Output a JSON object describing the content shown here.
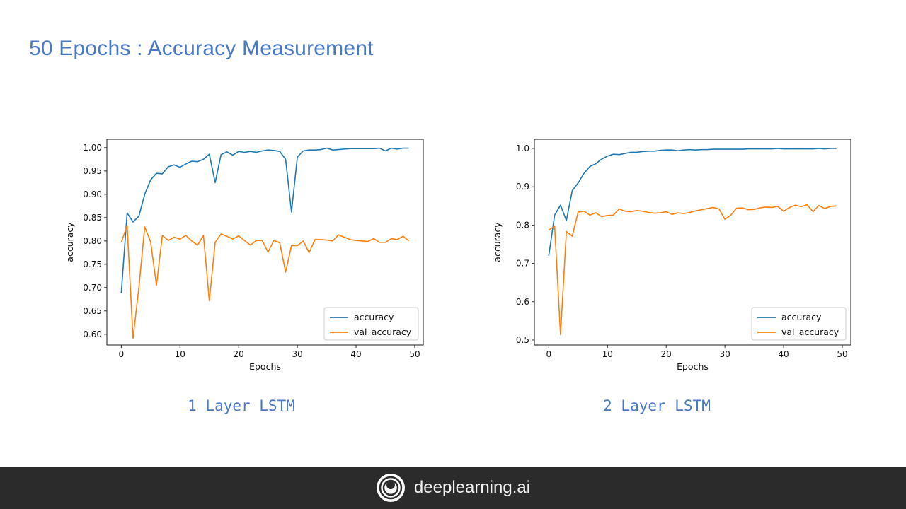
{
  "slide": {
    "title": "50 Epochs : Accuracy Measurement"
  },
  "footer": {
    "brand": "deeplearning.ai",
    "logo_icon": "deeplearning-logo-icon"
  },
  "colors": {
    "accuracy": "#1f77b4",
    "val_accuracy": "#ff7f0e",
    "title": "#4a78c6"
  },
  "chart_data": [
    {
      "type": "line",
      "caption": "1 Layer LSTM",
      "xlabel": "Epochs",
      "ylabel": "accuracy",
      "xlim": [
        -2.45,
        51.45
      ],
      "ylim": [
        0.577,
        1.018
      ],
      "xticks": [
        0,
        10,
        20,
        30,
        40,
        50
      ],
      "xtick_labels": [
        "0",
        "10",
        "20",
        "30",
        "40",
        "50"
      ],
      "yticks": [
        0.6,
        0.65,
        0.7,
        0.75,
        0.8,
        0.85,
        0.9,
        0.95,
        1.0
      ],
      "ytick_labels": [
        "0.60",
        "0.65",
        "0.70",
        "0.75",
        "0.80",
        "0.85",
        "0.90",
        "0.95",
        "1.00"
      ],
      "grid": false,
      "legend_position": "lower-right",
      "series": [
        {
          "name": "accuracy",
          "values": [
            0.688,
            0.86,
            0.841,
            0.853,
            0.9,
            0.931,
            0.945,
            0.944,
            0.959,
            0.963,
            0.958,
            0.965,
            0.971,
            0.97,
            0.975,
            0.986,
            0.925,
            0.985,
            0.991,
            0.984,
            0.992,
            0.99,
            0.992,
            0.99,
            0.993,
            0.995,
            0.994,
            0.992,
            0.975,
            0.862,
            0.98,
            0.993,
            0.995,
            0.995,
            0.996,
            0.999,
            0.995,
            0.996,
            0.997,
            0.998,
            0.998,
            0.998,
            0.998,
            0.998,
            0.999,
            0.993,
            0.999,
            0.997,
            0.999,
            0.999
          ]
        },
        {
          "name": "val_accuracy",
          "values": [
            0.797,
            0.833,
            0.591,
            0.7,
            0.83,
            0.798,
            0.705,
            0.812,
            0.801,
            0.808,
            0.804,
            0.812,
            0.8,
            0.791,
            0.812,
            0.672,
            0.797,
            0.815,
            0.81,
            0.804,
            0.811,
            0.801,
            0.791,
            0.801,
            0.801,
            0.776,
            0.801,
            0.796,
            0.733,
            0.79,
            0.79,
            0.8,
            0.775,
            0.803,
            0.803,
            0.802,
            0.8,
            0.813,
            0.808,
            0.803,
            0.801,
            0.8,
            0.799,
            0.805,
            0.797,
            0.797,
            0.805,
            0.803,
            0.81,
            0.8
          ]
        }
      ]
    },
    {
      "type": "line",
      "caption": "2 Layer LSTM",
      "xlabel": "Epochs",
      "ylabel": "accuracy",
      "xlim": [
        -2.45,
        51.45
      ],
      "ylim": [
        0.487,
        1.024
      ],
      "xticks": [
        0,
        10,
        20,
        30,
        40,
        50
      ],
      "xtick_labels": [
        "0",
        "10",
        "20",
        "30",
        "40",
        "50"
      ],
      "yticks": [
        0.5,
        0.6,
        0.7,
        0.8,
        0.9,
        1.0
      ],
      "ytick_labels": [
        "0.5",
        "0.6",
        "0.7",
        "0.8",
        "0.9",
        "1.0"
      ],
      "grid": false,
      "legend_position": "lower-right",
      "series": [
        {
          "name": "accuracy",
          "values": [
            0.72,
            0.826,
            0.852,
            0.812,
            0.89,
            0.91,
            0.935,
            0.953,
            0.96,
            0.972,
            0.98,
            0.985,
            0.984,
            0.987,
            0.99,
            0.99,
            0.992,
            0.993,
            0.993,
            0.995,
            0.996,
            0.996,
            0.994,
            0.996,
            0.997,
            0.996,
            0.997,
            0.997,
            0.998,
            0.998,
            0.998,
            0.998,
            0.998,
            0.998,
            0.999,
            0.999,
            0.999,
            0.999,
            0.999,
            1.0,
            0.999,
            0.999,
            0.999,
            0.999,
            0.999,
            0.999,
            1.0,
            0.999,
            1.0,
            1.0
          ]
        },
        {
          "name": "val_accuracy",
          "values": [
            0.787,
            0.797,
            0.514,
            0.783,
            0.771,
            0.834,
            0.836,
            0.826,
            0.832,
            0.822,
            0.825,
            0.826,
            0.842,
            0.836,
            0.835,
            0.838,
            0.836,
            0.833,
            0.831,
            0.832,
            0.835,
            0.828,
            0.832,
            0.83,
            0.833,
            0.837,
            0.84,
            0.843,
            0.846,
            0.842,
            0.815,
            0.826,
            0.844,
            0.845,
            0.84,
            0.841,
            0.845,
            0.847,
            0.846,
            0.849,
            0.836,
            0.846,
            0.852,
            0.848,
            0.853,
            0.835,
            0.851,
            0.843,
            0.849,
            0.85
          ]
        }
      ]
    }
  ]
}
